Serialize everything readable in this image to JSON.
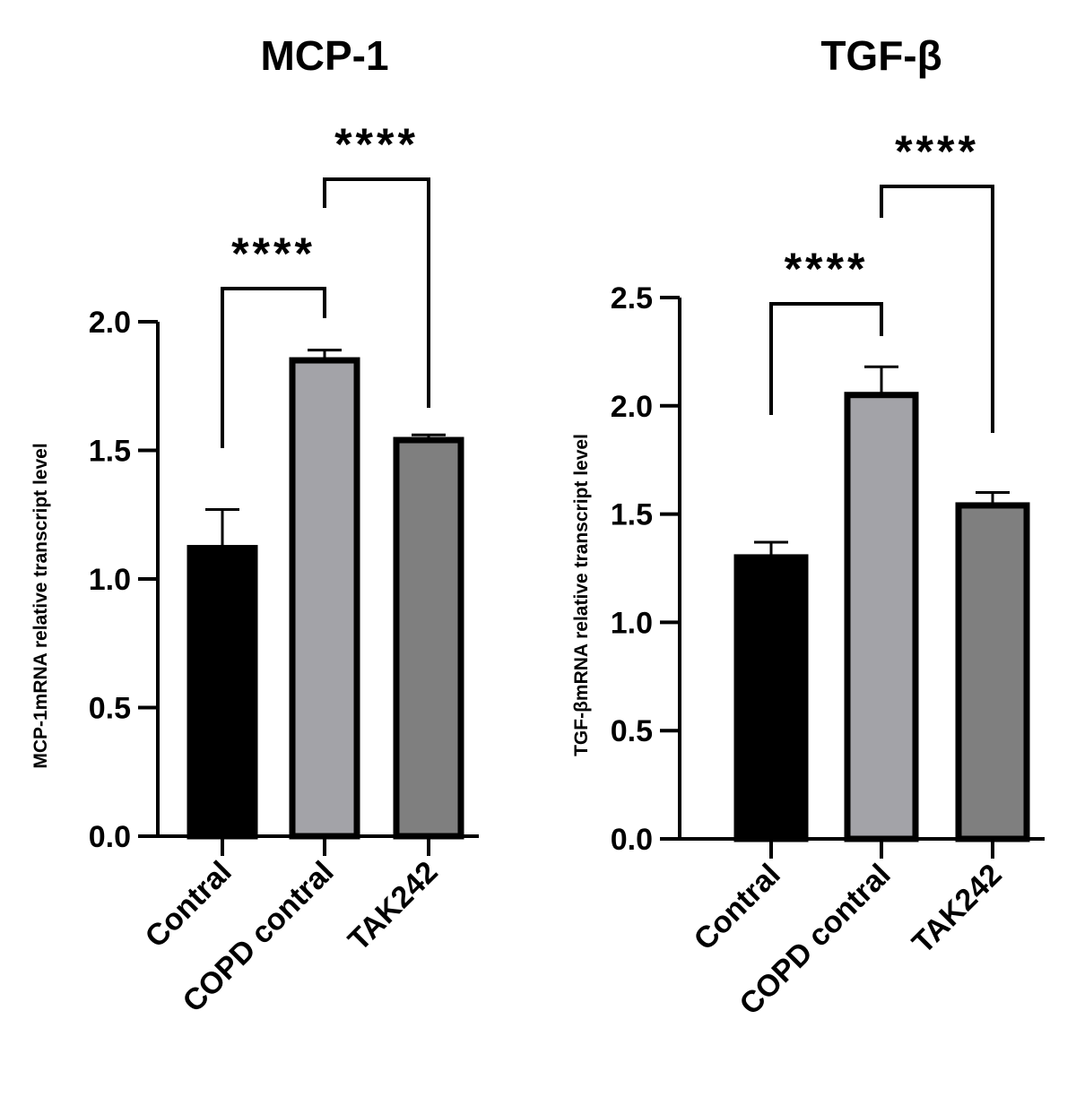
{
  "chart_data": [
    {
      "type": "bar",
      "title": "MCP-1",
      "xlabel": "",
      "ylabel": "MCP-1mRNA relative transcript level",
      "categories": [
        "Contral",
        "COPD contral",
        "TAK242"
      ],
      "values": [
        1.12,
        1.85,
        1.54
      ],
      "errors": [
        0.15,
        0.04,
        0.02
      ],
      "colors": [
        "#000000",
        "#a3a3a8",
        "#7f7f7f"
      ],
      "ylim": [
        0,
        2.0
      ],
      "yticks": [
        0.0,
        0.5,
        1.0,
        1.5,
        2.0
      ],
      "ytick_labels": [
        "0.0",
        "0.5",
        "1.0",
        "1.5",
        "2.0"
      ],
      "comparisons": [
        {
          "from": 0,
          "to": 1,
          "label": "****"
        },
        {
          "from": 1,
          "to": 2,
          "label": "****"
        }
      ],
      "grid": false
    },
    {
      "type": "bar",
      "title": "TGF-β",
      "xlabel": "",
      "ylabel": "TGF-βmRNA relative transcript level",
      "categories": [
        "Contral",
        "COPD contral",
        "TAK242"
      ],
      "values": [
        1.3,
        2.05,
        1.54
      ],
      "errors": [
        0.07,
        0.13,
        0.06
      ],
      "colors": [
        "#000000",
        "#a3a3a8",
        "#7f7f7f"
      ],
      "ylim": [
        0,
        2.5
      ],
      "yticks": [
        0.0,
        0.5,
        1.0,
        1.5,
        2.0,
        2.5
      ],
      "ytick_labels": [
        "0.0",
        "0.5",
        "1.0",
        "1.5",
        "2.0",
        "2.5"
      ],
      "comparisons": [
        {
          "from": 0,
          "to": 1,
          "label": "****"
        },
        {
          "from": 1,
          "to": 2,
          "label": "****"
        }
      ],
      "grid": false
    }
  ]
}
